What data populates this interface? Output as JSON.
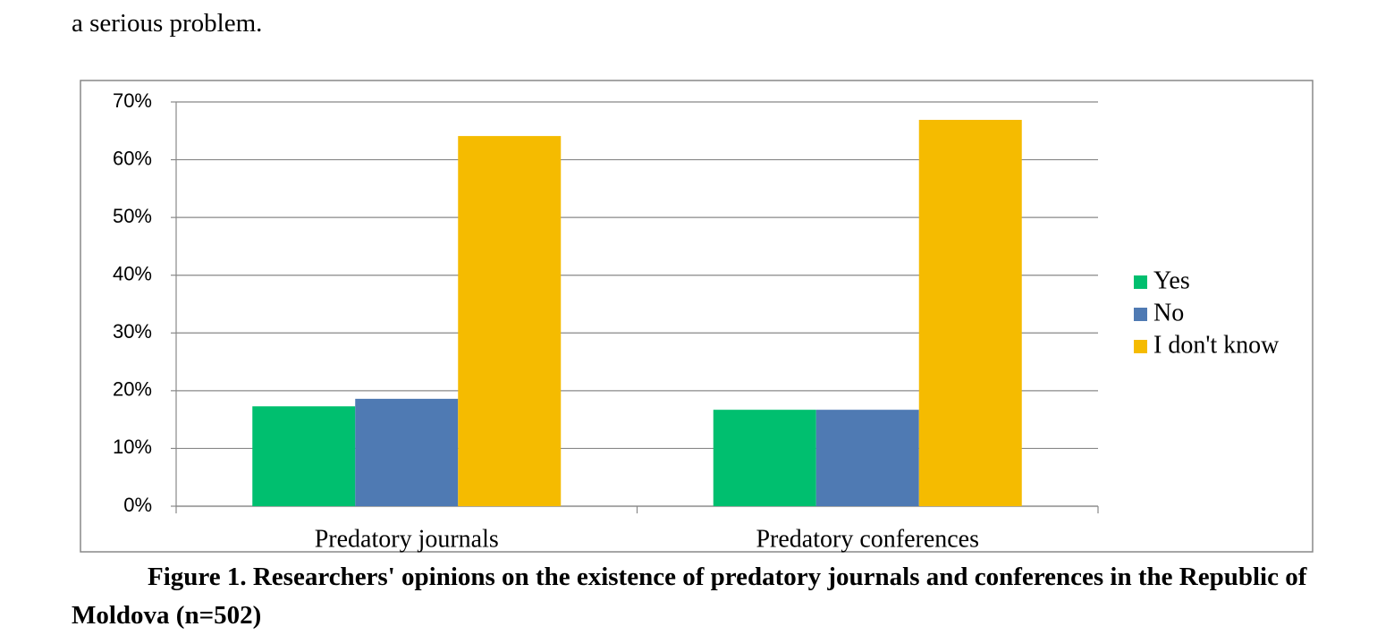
{
  "text_above": "a serious problem.",
  "chart_data": {
    "type": "bar",
    "categories": [
      "Predatory journals",
      "Predatory conferences"
    ],
    "series": [
      {
        "name": "Yes",
        "color": "#00bf6f",
        "values": [
          17.3,
          16.7
        ]
      },
      {
        "name": "No",
        "color": "#4f7ab3",
        "values": [
          18.6,
          16.7
        ]
      },
      {
        "name": "I don't know",
        "color": "#f5bb00",
        "values": [
          64.1,
          66.9
        ]
      }
    ],
    "ylim": [
      0,
      70
    ],
    "yticks": [
      {
        "value": 0,
        "label": "0%"
      },
      {
        "value": 10,
        "label": "10%"
      },
      {
        "value": 20,
        "label": "20%"
      },
      {
        "value": 30,
        "label": "30%"
      },
      {
        "value": 40,
        "label": "40%"
      },
      {
        "value": 50,
        "label": "50%"
      },
      {
        "value": 60,
        "label": "60%"
      },
      {
        "value": 70,
        "label": "70%"
      }
    ],
    "grid": true,
    "legend": "right"
  },
  "caption": "Figure 1. Researchers' opinions on the existence of predatory journals and conferences in the Republic of Moldova (n=502)"
}
